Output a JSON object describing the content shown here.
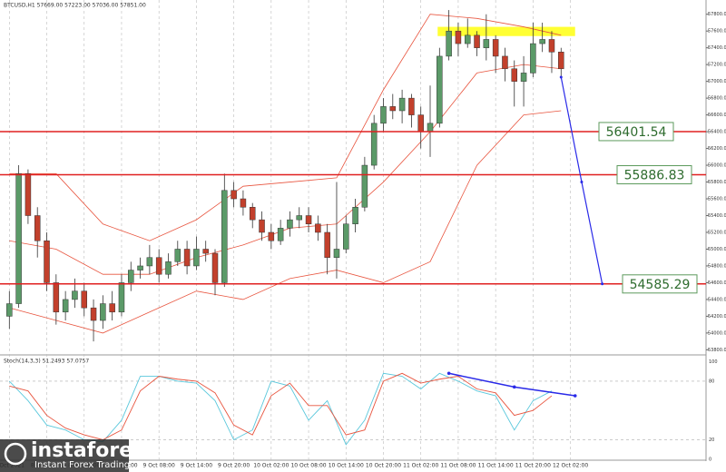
{
  "chart_data": [
    {
      "type": "candlestick",
      "title": "BTCUSD,H1 57669.00 57223.00 57036.00 57851.00",
      "open": [
        54200,
        54350,
        55900,
        55400,
        55100,
        54600,
        54250,
        54400,
        54500,
        54300,
        54150,
        54350,
        54250,
        54600,
        54750,
        54800,
        54900,
        54700,
        54850,
        55000,
        54800,
        55000,
        54950,
        54600,
        55700,
        55600,
        55500,
        55350,
        55200,
        55100,
        55250,
        55350,
        55400,
        55300,
        55200,
        54900,
        55000,
        55300,
        55500,
        56000,
        56500,
        56700,
        56650,
        56800,
        56600,
        56400,
        56500,
        57300,
        57600,
        57450,
        57550,
        57400,
        57500,
        57300,
        57150,
        57000,
        57100,
        57450,
        57500,
        57350
      ],
      "high": [
        54500,
        56000,
        55950,
        55500,
        55200,
        54700,
        54500,
        54650,
        54600,
        54400,
        54450,
        54500,
        54700,
        54850,
        54900,
        55050,
        55000,
        54950,
        55100,
        55100,
        55150,
        55100,
        55000,
        55900,
        55800,
        55700,
        55550,
        55450,
        55300,
        55350,
        55450,
        55500,
        55500,
        55400,
        55300,
        55800,
        55400,
        55600,
        56100,
        56600,
        56800,
        56850,
        56900,
        56850,
        56700,
        56950,
        57400,
        57850,
        57700,
        57750,
        57600,
        57800,
        57550,
        57400,
        57250,
        57300,
        57700,
        57700,
        57600,
        57400
      ],
      "low": [
        54050,
        54300,
        55300,
        54900,
        54500,
        54100,
        54150,
        54300,
        54200,
        53900,
        54050,
        54150,
        54200,
        54500,
        54650,
        54700,
        54600,
        54650,
        54800,
        54700,
        54750,
        54850,
        54450,
        54550,
        55500,
        55400,
        55250,
        55100,
        55000,
        55050,
        55150,
        55250,
        55200,
        55100,
        54700,
        54650,
        54950,
        55200,
        55450,
        55950,
        56400,
        56550,
        56500,
        56450,
        56200,
        56100,
        56450,
        57250,
        57300,
        57400,
        57300,
        57250,
        57100,
        57000,
        56700,
        56700,
        57050,
        57350,
        57100,
        57050
      ],
      "close": [
        54350,
        55900,
        55400,
        55100,
        54600,
        54250,
        54400,
        54500,
        54300,
        54150,
        54350,
        54250,
        54600,
        54750,
        54800,
        54900,
        54700,
        54850,
        55000,
        54800,
        55000,
        54950,
        54600,
        55700,
        55600,
        55500,
        55350,
        55200,
        55100,
        55250,
        55350,
        55400,
        55300,
        55200,
        54900,
        55000,
        55300,
        55500,
        56000,
        56500,
        56700,
        56650,
        56800,
        56600,
        56400,
        56500,
        57300,
        57600,
        57450,
        57550,
        57400,
        57500,
        57300,
        57150,
        57000,
        57100,
        57450,
        57500,
        57350,
        57150
      ],
      "up_color": "#5b9a68",
      "down_color": "#c2402c",
      "bands": {
        "x": [
          0,
          5,
          10,
          15,
          20,
          25,
          30,
          35,
          40,
          45,
          50,
          55,
          59
        ],
        "upper": [
          55900,
          55900,
          55300,
          55100,
          55350,
          55750,
          55800,
          55850,
          56900,
          57800,
          57750,
          57650,
          57550
        ],
        "middle": [
          55100,
          55000,
          54700,
          54700,
          54900,
          55050,
          55250,
          55300,
          55800,
          56400,
          57100,
          57200,
          57150
        ],
        "lower": [
          54300,
          54150,
          54000,
          54250,
          54500,
          54400,
          54650,
          54750,
          54600,
          54850,
          56000,
          56600,
          56650
        ],
        "color": "#e8553f"
      },
      "levels": [
        56401.54,
        55886.83,
        54585.29
      ],
      "level_color": "#e02020",
      "resistance_zone": [
        57540,
        57650
      ],
      "zone_color": "#ffff33",
      "projection": {
        "x": [
          59,
          61.2,
          63.4
        ],
        "y": [
          57050,
          55800,
          54585.29
        ],
        "color": "#2a2ae8"
      },
      "xlim": [
        -1,
        74.5
      ],
      "ylim": [
        53750,
        57970
      ],
      "yticks": [
        {
          "value": 53800,
          "label": "53800.00"
        },
        {
          "value": 54000,
          "label": "54000.00"
        },
        {
          "value": 54200,
          "label": "54200.00"
        },
        {
          "value": 54400,
          "label": "54400.00"
        },
        {
          "value": 54600,
          "label": "54600.00"
        },
        {
          "value": 54800,
          "label": "54800.00"
        },
        {
          "value": 55000,
          "label": "55000.00"
        },
        {
          "value": 55200,
          "label": "55200.00"
        },
        {
          "value": 55400,
          "label": "55400.00"
        },
        {
          "value": 55600,
          "label": "55600.00"
        },
        {
          "value": 55800,
          "label": "55800.00"
        },
        {
          "value": 56000,
          "label": "56000.00"
        },
        {
          "value": 56200,
          "label": "56200.00"
        },
        {
          "value": 56400,
          "label": "56400.00"
        },
        {
          "value": 56600,
          "label": "56600.00"
        },
        {
          "value": 56800,
          "label": "56800.00"
        },
        {
          "value": 57000,
          "label": "57000.00"
        },
        {
          "value": 57200,
          "label": "57200.00"
        },
        {
          "value": 57400,
          "label": "57400.00"
        },
        {
          "value": 57600,
          "label": "57600.00"
        },
        {
          "value": 57800,
          "label": "57800.00"
        }
      ],
      "xticks": [
        {
          "value": 0,
          "label": "8 Oct 2021"
        },
        {
          "value": 4,
          "label": "8 Oct 14:00"
        },
        {
          "value": 8,
          "label": "8 Oct 20:00"
        },
        {
          "value": 12,
          "label": "9 Oct 02:00"
        },
        {
          "value": 16,
          "label": "9 Oct 08:00"
        },
        {
          "value": 20,
          "label": "9 Oct 14:00"
        },
        {
          "value": 24,
          "label": "9 Oct 20:00"
        },
        {
          "value": 28,
          "label": "10 Oct 02:00"
        },
        {
          "value": 32,
          "label": "10 Oct 08:00"
        },
        {
          "value": 36,
          "label": "10 Oct 14:00"
        },
        {
          "value": 40,
          "label": "10 Oct 20:00"
        },
        {
          "value": 44,
          "label": "11 Oct 02:00"
        },
        {
          "value": 48,
          "label": "11 Oct 08:00"
        },
        {
          "value": 52,
          "label": "11 Oct 14:00"
        },
        {
          "value": 56,
          "label": "11 Oct 20:00"
        },
        {
          "value": 60,
          "label": "12 Oct 02:00"
        }
      ],
      "grid": true
    },
    {
      "type": "line",
      "title": "Stoch(14,3,3) 51.2493 57.0757",
      "x": [
        0,
        2,
        4,
        6,
        8,
        10,
        12,
        14,
        16,
        18,
        20,
        22,
        24,
        26,
        28,
        30,
        32,
        34,
        36,
        38,
        40,
        42,
        44,
        46,
        48,
        50,
        52,
        54,
        56,
        58
      ],
      "series": [
        {
          "color": "#5bc8dc",
          "values": [
            80,
            60,
            35,
            30,
            20,
            18,
            40,
            85,
            85,
            80,
            78,
            60,
            20,
            30,
            80,
            75,
            40,
            60,
            15,
            40,
            88,
            85,
            72,
            88,
            80,
            70,
            65,
            30,
            60,
            70
          ]
        },
        {
          "color": "#e8553f",
          "values": [
            75,
            70,
            45,
            32,
            25,
            20,
            30,
            70,
            85,
            82,
            80,
            68,
            35,
            25,
            65,
            78,
            55,
            55,
            25,
            30,
            80,
            88,
            78,
            82,
            85,
            72,
            68,
            45,
            50,
            65
          ]
        }
      ],
      "divergence": {
        "x": [
          47,
          54,
          60.5
        ],
        "y": [
          88,
          74,
          65
        ],
        "color": "#2a2ae8"
      },
      "ylim": [
        0,
        105
      ],
      "yticks": [
        0,
        20,
        80,
        100
      ],
      "xlim": [
        -1,
        74.5
      ]
    }
  ],
  "watermark": {
    "brand": "instaforex",
    "tagline": "Instant Forex Trading"
  }
}
